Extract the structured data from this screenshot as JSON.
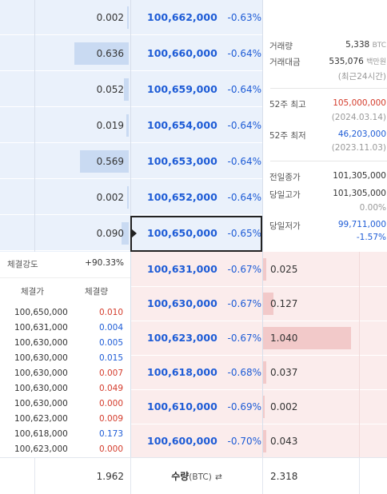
{
  "asks": [
    {
      "qty": "0.002",
      "price": "100,662,000",
      "rate": "-0.63%",
      "bar": 0.0
    },
    {
      "qty": "0.636",
      "price": "100,660,000",
      "rate": "-0.64%",
      "bar": 0.58
    },
    {
      "qty": "0.052",
      "price": "100,659,000",
      "rate": "-0.64%",
      "bar": 0.05
    },
    {
      "qty": "0.019",
      "price": "100,654,000",
      "rate": "-0.64%",
      "bar": 0.02
    },
    {
      "qty": "0.569",
      "price": "100,653,000",
      "rate": "-0.64%",
      "bar": 0.52
    },
    {
      "qty": "0.002",
      "price": "100,652,000",
      "rate": "-0.64%",
      "bar": 0.0
    },
    {
      "qty": "0.090",
      "price": "100,650,000",
      "rate": "-0.65%",
      "bar": 0.08
    }
  ],
  "bids": [
    {
      "qty": "0.025",
      "price": "100,631,000",
      "rate": "-0.67%",
      "bar": 0.02
    },
    {
      "qty": "0.127",
      "price": "100,630,000",
      "rate": "-0.67%",
      "bar": 0.12
    },
    {
      "qty": "1.040",
      "price": "100,623,000",
      "rate": "-0.67%",
      "bar": 1.0
    },
    {
      "qty": "0.037",
      "price": "100,618,000",
      "rate": "-0.68%",
      "bar": 0.03
    },
    {
      "qty": "0.002",
      "price": "100,610,000",
      "rate": "-0.69%",
      "bar": 0.0
    },
    {
      "qty": "0.043",
      "price": "100,600,000",
      "rate": "-0.70%",
      "bar": 0.03
    }
  ],
  "info": {
    "volume_label": "거래량",
    "volume_value": "5,338",
    "volume_unit": "BTC",
    "amount_label": "거래대금",
    "amount_value": "535,076",
    "amount_unit": "백만원",
    "amount_note": "(최근24시간)",
    "high52_label": "52주 최고",
    "high52_value": "105,000,000",
    "high52_date": "(2024.03.14)",
    "low52_label": "52주 최저",
    "low52_value": "46,203,000",
    "low52_date": "(2023.11.03)",
    "prev_close_label": "전일종가",
    "prev_close_value": "101,305,000",
    "day_high_label": "당일고가",
    "day_high_value": "101,305,000",
    "day_high_rate": "0.00%",
    "day_low_label": "당일저가",
    "day_low_value": "99,711,000",
    "day_low_rate": "-1.57%"
  },
  "strength": {
    "label": "체결강도",
    "value": "+90.33%"
  },
  "trades_header": {
    "price": "체결가",
    "qty": "체결량"
  },
  "trades": [
    {
      "price": "100,650,000",
      "qty": "0.010",
      "side": "buy"
    },
    {
      "price": "100,631,000",
      "qty": "0.004",
      "side": "sell"
    },
    {
      "price": "100,630,000",
      "qty": "0.005",
      "side": "sell"
    },
    {
      "price": "100,630,000",
      "qty": "0.015",
      "side": "sell"
    },
    {
      "price": "100,630,000",
      "qty": "0.007",
      "side": "buy"
    },
    {
      "price": "100,630,000",
      "qty": "0.049",
      "side": "buy"
    },
    {
      "price": "100,630,000",
      "qty": "0.000",
      "side": "buy"
    },
    {
      "price": "100,623,000",
      "qty": "0.009",
      "side": "buy"
    },
    {
      "price": "100,618,000",
      "qty": "0.173",
      "side": "sell"
    },
    {
      "price": "100,623,000",
      "qty": "0.000",
      "side": "buy"
    }
  ],
  "summary": {
    "ask_total": "1.962",
    "label": "수량",
    "label_unit": "(BTC)",
    "toggle_glyph": "⇄",
    "bid_total": "2.318"
  },
  "colors": {
    "ask_bg": "#eaf1fb",
    "bid_bg": "#fbecec",
    "down": "#1e5cd6",
    "up": "#d43c2c"
  }
}
